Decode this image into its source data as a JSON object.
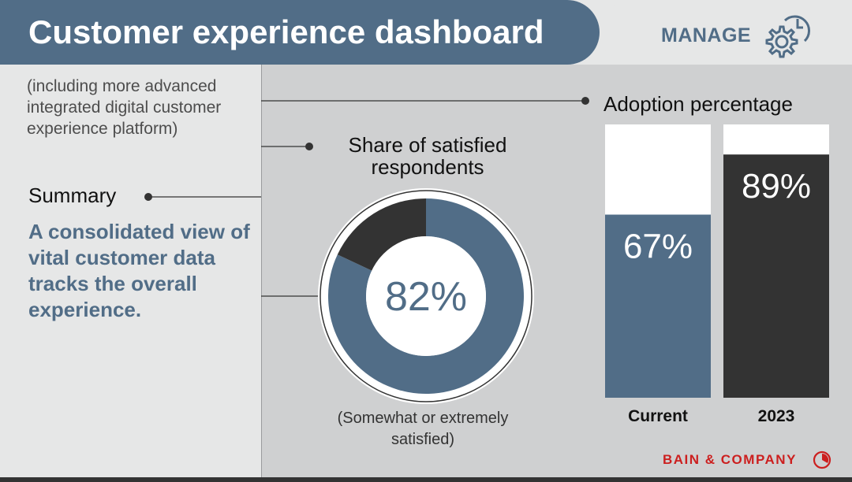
{
  "header": {
    "title": "Customer experience dashboard",
    "manage_label": "MANAGE",
    "manage_icon": "gear-clock-icon"
  },
  "left_panel": {
    "intro": "(including more advanced integrated digital customer experience platform)",
    "summary_label": "Summary",
    "summary_text": "A consolidated view of vital customer data tracks the overall experience."
  },
  "chart_data": [
    {
      "type": "pie",
      "title": "Share of satisfied respondents",
      "center_label": "82%",
      "note": "(Somewhat or extremely satisfied)",
      "slices": [
        {
          "label": "Satisfied",
          "value": 82
        },
        {
          "label": "Other",
          "value": 18
        }
      ],
      "colors": [
        "#516d87",
        "#333333"
      ]
    },
    {
      "type": "bar",
      "title": "Adoption percentage",
      "categories": [
        "Current",
        "2023"
      ],
      "values": [
        67,
        89
      ],
      "value_labels": [
        "67%",
        "89%"
      ],
      "ylim": [
        0,
        100
      ],
      "colors": [
        "#516d87",
        "#333333"
      ],
      "track_color": "#ffffff"
    }
  ],
  "brand": {
    "name": "BAIN & COMPANY",
    "icon": "bain-logo-icon",
    "color": "#cc1f1f"
  },
  "colors": {
    "accent": "#516d87",
    "dark": "#333333",
    "light_panel": "#e6e7e7",
    "mid_panel": "#cfd0d1"
  }
}
